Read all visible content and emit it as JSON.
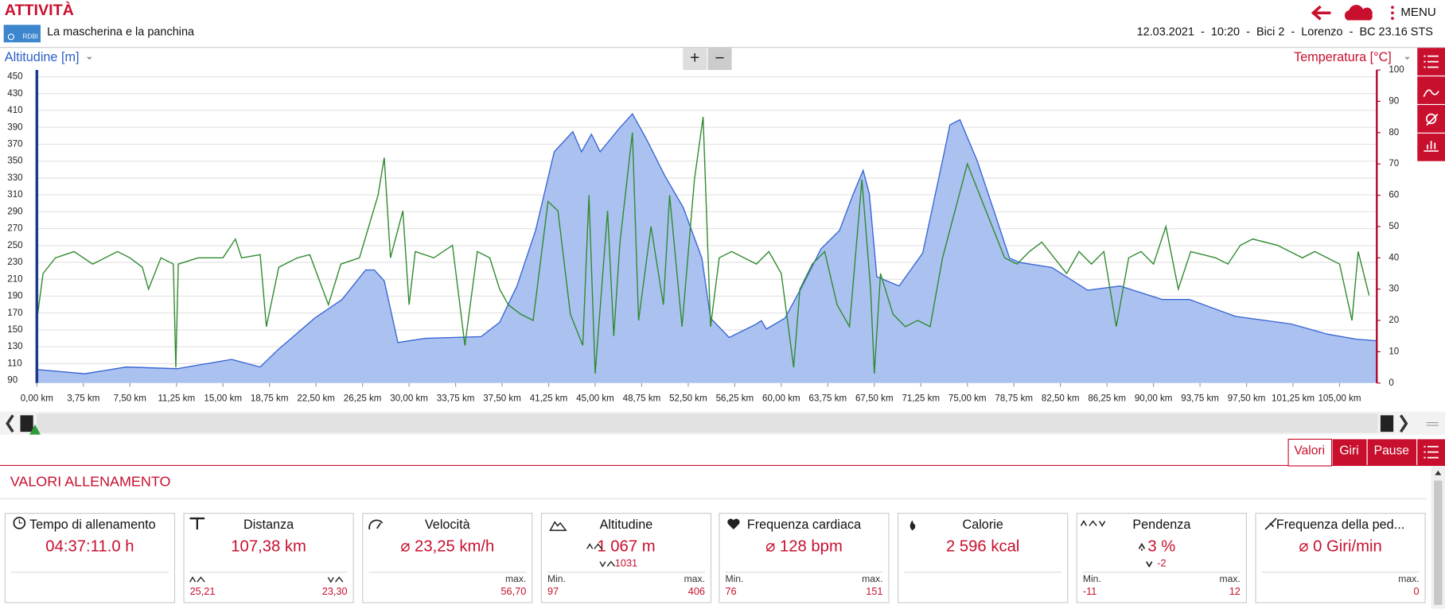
{
  "header": {
    "title": "ATTIVITÀ",
    "logo": "RDBI",
    "activity": "La mascherina e la panchina",
    "menu": "MENU",
    "info": "12.03.2021  -  10:20  -  Bici 2  -  Lorenzo  -  BC 23.16 STS"
  },
  "zoom": [
    "+",
    "−"
  ],
  "chart_data": {
    "type": "area",
    "ylabel": "Altitudine [m]",
    "y2label": "Temperatura [°C]",
    "grid": true,
    "xlim": [
      0,
      108
    ],
    "xticks": [
      {
        "value": 0,
        "label": "0,00 km"
      },
      {
        "value": 3.75,
        "label": "3,75 km"
      },
      {
        "value": 7.5,
        "label": "7,50 km"
      },
      {
        "value": 11.25,
        "label": "11,25 km"
      },
      {
        "value": 15,
        "label": "15,00 km"
      },
      {
        "value": 18.75,
        "label": "18,75 km"
      },
      {
        "value": 22.5,
        "label": "22,50 km"
      },
      {
        "value": 26.25,
        "label": "26,25 km"
      },
      {
        "value": 30,
        "label": "30,00 km"
      },
      {
        "value": 33.75,
        "label": "33,75 km"
      },
      {
        "value": 37.5,
        "label": "37,50 km"
      },
      {
        "value": 41.25,
        "label": "41,25 km"
      },
      {
        "value": 45,
        "label": "45,00 km"
      },
      {
        "value": 48.75,
        "label": "48,75 km"
      },
      {
        "value": 52.5,
        "label": "52,50 km"
      },
      {
        "value": 56.25,
        "label": "56,25 km"
      },
      {
        "value": 60,
        "label": "60,00 km"
      },
      {
        "value": 63.75,
        "label": "63,75 km"
      },
      {
        "value": 67.5,
        "label": "67,50 km"
      },
      {
        "value": 71.25,
        "label": "71,25 km"
      },
      {
        "value": 75,
        "label": "75,00 km"
      },
      {
        "value": 78.75,
        "label": "78,75 km"
      },
      {
        "value": 82.5,
        "label": "82,50 km"
      },
      {
        "value": 86.25,
        "label": "86,25 km"
      },
      {
        "value": 90,
        "label": "90,00 km"
      },
      {
        "value": 93.75,
        "label": "93,75 km"
      },
      {
        "value": 97.5,
        "label": "97,50 km"
      },
      {
        "value": 101.25,
        "label": "101,25 km"
      },
      {
        "value": 105,
        "label": "105,00 km"
      }
    ],
    "ylim": [
      87,
      458
    ],
    "yticks": [
      90,
      110,
      130,
      150,
      170,
      190,
      210,
      230,
      250,
      270,
      290,
      310,
      330,
      350,
      370,
      390,
      410,
      430,
      450
    ],
    "y2lim": [
      0,
      100
    ],
    "y2ticks": [
      0,
      10,
      20,
      30,
      40,
      50,
      60,
      70,
      80,
      90,
      100
    ],
    "series": [
      {
        "type": "area",
        "color": "#a6bff0",
        "x": [
          0,
          3.86,
          7.2,
          11.3,
          15.7,
          18,
          19.4,
          22.4,
          24.6,
          26.5,
          27.2,
          28,
          29.1,
          31.3,
          35.8,
          37.3,
          38.7,
          40.2,
          41.7,
          43.2,
          43.9,
          44.7,
          45.4,
          46.9,
          48,
          49.1,
          50.6,
          52.1,
          53.6,
          54.3,
          55.8,
          58,
          58.4,
          58.8,
          60.3,
          61.7,
          63.2,
          64.7,
          65.8,
          66.6,
          67.1,
          67.7,
          69.5,
          71.4,
          72.9,
          73.6,
          74.4,
          75.8,
          77.3,
          78.4,
          79.2,
          81.8,
          84.7,
          87.3,
          90.7,
          92.9,
          96.6,
          101.1,
          104,
          106.3,
          108
        ],
        "values": [
          103,
          98,
          106,
          104,
          115,
          106,
          126,
          164,
          186,
          221,
          221,
          208,
          135,
          140,
          142,
          159,
          202,
          268,
          361,
          385,
          361,
          382,
          361,
          388,
          406,
          377,
          333,
          295,
          235,
          164,
          141,
          157,
          161,
          151,
          164,
          202,
          246,
          268,
          311,
          339,
          311,
          213,
          202,
          241,
          344,
          393,
          399,
          350,
          284,
          235,
          230,
          224,
          197,
          202,
          186,
          186,
          166,
          157,
          145,
          139,
          137
        ]
      },
      {
        "type": "line",
        "axis": "y2",
        "color": "#2f8a2f",
        "x": [
          0,
          0.5,
          1.5,
          3,
          4.5,
          6.5,
          7.5,
          8.5,
          9,
          10,
          11,
          11.2,
          11.4,
          13,
          15,
          16,
          16.5,
          18,
          18.5,
          19.5,
          21,
          22,
          23.5,
          24.5,
          26,
          27.5,
          28,
          28.5,
          29.5,
          30,
          30.5,
          32,
          33.5,
          34.5,
          35.5,
          36.5,
          37.3,
          38,
          39,
          40,
          41.2,
          42,
          43,
          44,
          44.5,
          45,
          46,
          46.5,
          47,
          48,
          48.5,
          49.5,
          50.5,
          51,
          52,
          53,
          53.7,
          54.3,
          55,
          56,
          57,
          58,
          59,
          60,
          61,
          61.5,
          62.5,
          63.5,
          64.5,
          65.5,
          66.5,
          67.2,
          67.5,
          68,
          69,
          70,
          71,
          72,
          73,
          74,
          75,
          76,
          77,
          78,
          79,
          80,
          81,
          82,
          83,
          84,
          85,
          86,
          87,
          88,
          89,
          90,
          91,
          92,
          93,
          95,
          96,
          97,
          98,
          100,
          101,
          102,
          103,
          104,
          105,
          106,
          106.5,
          107.38
        ],
        "values": [
          20,
          35,
          40,
          42,
          38,
          42,
          40,
          37,
          30,
          40,
          38,
          5,
          38,
          40,
          40,
          46,
          40,
          41,
          18,
          37,
          40,
          41,
          25,
          38,
          40,
          60,
          72,
          40,
          55,
          25,
          42,
          40,
          44,
          12,
          42,
          40,
          30,
          25,
          22,
          20,
          58,
          55,
          22,
          12,
          60,
          3,
          55,
          15,
          45,
          80,
          20,
          50,
          25,
          60,
          18,
          65,
          85,
          18,
          40,
          42,
          40,
          38,
          42,
          35,
          5,
          30,
          38,
          42,
          25,
          18,
          65,
          30,
          3,
          35,
          22,
          18,
          20,
          18,
          40,
          55,
          70,
          60,
          50,
          40,
          38,
          42,
          45,
          40,
          35,
          42,
          38,
          42,
          18,
          40,
          42,
          38,
          50,
          30,
          42,
          40,
          38,
          44,
          46,
          44,
          42,
          40,
          42,
          40,
          38,
          20,
          42,
          28
        ]
      }
    ]
  },
  "tabs": [
    "Valori",
    "Giri",
    "Pause"
  ],
  "section_title": "VALORI ALLENAMENTO",
  "stats": [
    {
      "title": "Tempo di allenamento",
      "value": "04:37:11.0 h"
    },
    {
      "title": "Distanza",
      "value": "107,38 km",
      "lo": "25,21",
      "hi": "23,30"
    },
    {
      "title": "Velocità",
      "value": "⌀ 23,25 km/h",
      "hi_label": "max.",
      "hi": "56,70"
    },
    {
      "title": "Altitudine",
      "value": "1 067 m",
      "sub": "1031",
      "lo_label": "Min.",
      "lo": "97",
      "hi_label": "max.",
      "hi": "406"
    },
    {
      "title": "Frequenza cardiaca",
      "value": "⌀ 128 bpm",
      "lo_label": "Min.",
      "lo": "76",
      "hi_label": "max.",
      "hi": "151"
    },
    {
      "title": "Calorie",
      "value": "2 596 kcal"
    },
    {
      "title": "Pendenza",
      "value": "3 %",
      "sub": "-2",
      "lo_label": "Min.",
      "lo": "-11",
      "hi_label": "max.",
      "hi": "12"
    },
    {
      "title": "Frequenza della ped...",
      "value": "⌀ 0 Giri/min",
      "hi_label": "max.",
      "hi": "0"
    }
  ]
}
